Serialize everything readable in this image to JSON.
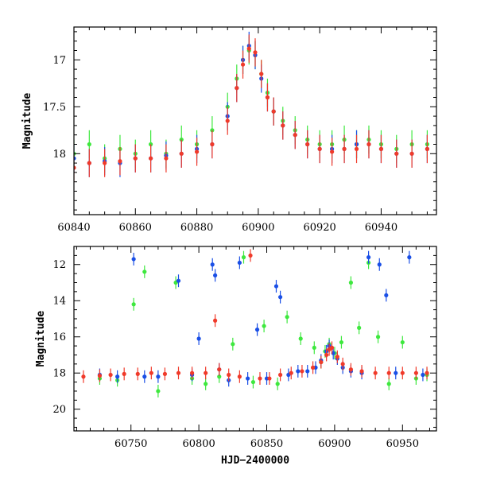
{
  "colors": {
    "blue": "#1a4fe6",
    "green": "#3ee83e",
    "red": "#f03a2a"
  },
  "chart_data": [
    {
      "type": "scatter",
      "title": "",
      "xlabel": "",
      "ylabel": "Magnitude",
      "xlim": [
        60840,
        60958
      ],
      "ylim": [
        18.65,
        16.65
      ],
      "y_inverted": true,
      "x_ticks": [
        60840,
        60860,
        60880,
        60900,
        60920,
        60940
      ],
      "y_ticks": [
        17,
        17.5,
        18
      ],
      "x_tick_labels": [
        "60840",
        "60860",
        "60880",
        "60900",
        "60920",
        "60940"
      ],
      "y_tick_labels": [
        "17",
        "17.5",
        "18"
      ],
      "series": [
        {
          "color_key": "blue",
          "x": [
            60840,
            60845,
            60850,
            60855,
            60860,
            60865,
            60870,
            60875,
            60880,
            60885,
            60890,
            60893,
            60895,
            60897,
            60899,
            60901,
            60903,
            60905,
            60908,
            60912,
            60916,
            60920,
            60924,
            60928,
            60932,
            60936,
            60940,
            60945,
            60950,
            60955
          ],
          "y": [
            18.05,
            18.1,
            18.08,
            18.1,
            18.05,
            18.05,
            18.02,
            18.0,
            17.95,
            17.9,
            17.6,
            17.3,
            17.0,
            16.85,
            16.95,
            17.2,
            17.4,
            17.55,
            17.7,
            17.8,
            17.9,
            17.95,
            17.95,
            17.95,
            17.9,
            17.9,
            17.95,
            18.0,
            18.0,
            17.95
          ]
        },
        {
          "color_key": "green",
          "x": [
            60840,
            60845,
            60850,
            60855,
            60860,
            60865,
            60870,
            60875,
            60880,
            60885,
            60890,
            60893,
            60895,
            60897,
            60899,
            60901,
            60903,
            60905,
            60908,
            60912,
            60916,
            60920,
            60924,
            60928,
            60932,
            60936,
            60940,
            60945,
            60950,
            60955
          ],
          "y": [
            18.0,
            17.9,
            18.05,
            17.95,
            18.0,
            17.9,
            18.0,
            17.85,
            17.9,
            17.75,
            17.5,
            17.2,
            17.0,
            16.9,
            16.95,
            17.15,
            17.35,
            17.55,
            17.65,
            17.75,
            17.85,
            17.9,
            17.9,
            17.85,
            17.9,
            17.85,
            17.9,
            17.95,
            17.9,
            17.9
          ]
        },
        {
          "color_key": "red",
          "x": [
            60840,
            60845,
            60850,
            60855,
            60860,
            60865,
            60870,
            60875,
            60880,
            60885,
            60890,
            60893,
            60895,
            60897,
            60899,
            60901,
            60903,
            60905,
            60908,
            60912,
            60916,
            60920,
            60924,
            60928,
            60932,
            60936,
            60940,
            60945,
            60950,
            60955
          ],
          "y": [
            18.15,
            18.1,
            18.1,
            18.08,
            18.05,
            18.05,
            18.05,
            18.0,
            17.98,
            17.9,
            17.65,
            17.3,
            17.05,
            16.88,
            16.92,
            17.15,
            17.4,
            17.55,
            17.7,
            17.8,
            17.9,
            17.95,
            17.98,
            17.95,
            17.95,
            17.9,
            17.95,
            18.0,
            18.0,
            17.95
          ]
        }
      ]
    },
    {
      "type": "scatter",
      "title": "",
      "xlabel": "HJD−2400000",
      "ylabel": "Magnitude",
      "xlim": [
        60708,
        60975
      ],
      "ylim": [
        21.2,
        11.0
      ],
      "y_inverted": true,
      "x_ticks": [
        60750,
        60800,
        60850,
        60900,
        60950
      ],
      "y_ticks": [
        12,
        14,
        16,
        18,
        20
      ],
      "x_tick_labels": [
        "60750",
        "60800",
        "60850",
        "60900",
        "60950"
      ],
      "y_tick_labels": [
        "12",
        "14",
        "16",
        "18",
        "20"
      ],
      "series": [
        {
          "color_key": "blue",
          "x": [
            60727,
            60740,
            60752,
            60760,
            60770,
            60785,
            60795,
            60800,
            60810,
            60812,
            60815,
            60822,
            60830,
            60836,
            60843,
            60850,
            60857,
            60860,
            60866,
            60873,
            60880,
            60886,
            60890,
            60894,
            60896,
            60899,
            60902,
            60906,
            60912,
            60920,
            60925,
            60933,
            60938,
            60945,
            60955,
            60965
          ],
          "y": [
            18.1,
            18.2,
            11.7,
            18.2,
            18.2,
            12.9,
            18.1,
            16.1,
            12.0,
            12.6,
            17.8,
            18.4,
            11.9,
            18.3,
            15.6,
            18.3,
            13.2,
            13.8,
            18.1,
            17.9,
            17.9,
            17.7,
            17.3,
            16.8,
            16.5,
            16.9,
            17.2,
            17.7,
            17.9,
            18.0,
            11.6,
            12.0,
            13.7,
            18.0,
            11.6,
            18.1
          ]
        },
        {
          "color_key": "green",
          "x": [
            60727,
            60740,
            60752,
            60760,
            60770,
            60783,
            60795,
            60805,
            60815,
            60825,
            60833,
            60840,
            60848,
            60858,
            60865,
            60875,
            60885,
            60890,
            60893,
            60896,
            60900,
            60905,
            60912,
            60918,
            60925,
            60932,
            60940,
            60950,
            60960,
            60968
          ],
          "y": [
            18.3,
            18.4,
            14.2,
            12.4,
            19.0,
            13.0,
            18.3,
            18.6,
            18.2,
            16.4,
            11.6,
            18.5,
            15.4,
            18.6,
            14.9,
            16.1,
            16.6,
            17.4,
            16.8,
            16.4,
            16.9,
            16.3,
            13.0,
            15.5,
            11.9,
            16.0,
            18.6,
            16.3,
            18.3,
            18.1
          ]
        },
        {
          "color_key": "red",
          "x": [
            60715,
            60727,
            60735,
            60745,
            60755,
            60765,
            60775,
            60785,
            60795,
            60805,
            60812,
            60815,
            60822,
            60830,
            60838,
            60845,
            60852,
            60860,
            60868,
            60876,
            60884,
            60890,
            60894,
            60896,
            60898,
            60902,
            60906,
            60912,
            60920,
            60930,
            60940,
            60950,
            60960,
            60968
          ],
          "y": [
            18.2,
            18.15,
            18.1,
            18.05,
            18.05,
            18.0,
            18.05,
            18.0,
            18.0,
            18.0,
            15.1,
            17.8,
            18.1,
            18.2,
            11.5,
            18.3,
            18.3,
            18.1,
            18.0,
            17.9,
            17.7,
            17.4,
            17.0,
            16.7,
            16.6,
            17.1,
            17.5,
            17.8,
            17.9,
            18.0,
            18.0,
            18.0,
            18.0,
            18.0
          ]
        }
      ]
    }
  ]
}
